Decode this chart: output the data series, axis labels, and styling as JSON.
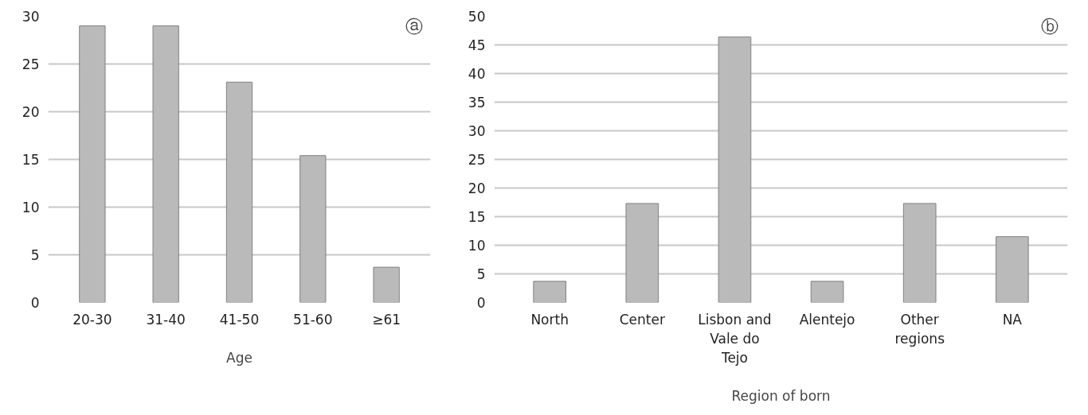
{
  "chart_data": [
    {
      "type": "bar",
      "xlabel": "Age",
      "categories": [
        "20-30",
        "31-40",
        "41-50",
        "51-60",
        "≥61"
      ],
      "values": [
        29,
        29,
        23.1,
        15.4,
        3.7
      ],
      "color": "#bababa",
      "ylim": [
        0,
        30
      ],
      "yticks": [
        0,
        5,
        10,
        15,
        20,
        25,
        30
      ],
      "grid": "y",
      "annotations": [
        "ⓐ"
      ]
    },
    {
      "type": "bar",
      "xlabel": "Region of born",
      "categories": [
        "North",
        "Center",
        "Lisbon and Vale do Tejo",
        "Alentejo",
        "Other regions",
        "NA"
      ],
      "values": [
        3.7,
        17.3,
        46.4,
        3.7,
        17.3,
        11.5
      ],
      "color": "#bababa",
      "ylim": [
        0,
        50
      ],
      "yticks": [
        0,
        5,
        10,
        15,
        20,
        25,
        30,
        35,
        40,
        45,
        50
      ],
      "grid": "y",
      "annotations": [
        "ⓑ"
      ]
    }
  ]
}
